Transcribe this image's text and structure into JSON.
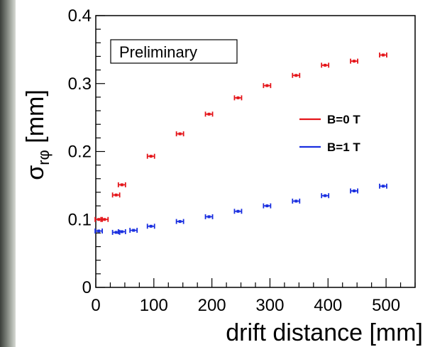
{
  "chart_data": {
    "type": "scatter",
    "xlabel": "drift distance [mm]",
    "ylabel": {
      "base": "σ",
      "subscript": "rφ",
      "unit": " [mm]"
    },
    "xlim": [
      0,
      550
    ],
    "ylim": [
      0,
      0.4
    ],
    "xticks": [
      0,
      100,
      200,
      300,
      400,
      500
    ],
    "yticks": [
      0,
      0.1,
      0.2,
      0.3,
      0.4
    ],
    "ytick_labels": [
      "0",
      "0.1",
      "0.2",
      "0.3",
      "0.4"
    ],
    "annotation": "Preliminary",
    "legend_position": "right",
    "grid": false,
    "series": [
      {
        "name": "B=0 T",
        "color": "#e4161b",
        "points": [
          [
            5,
            0.1
          ],
          [
            15,
            0.1
          ],
          [
            35,
            0.136
          ],
          [
            45,
            0.151
          ],
          [
            95,
            0.193
          ],
          [
            145,
            0.226
          ],
          [
            195,
            0.255
          ],
          [
            245,
            0.279
          ],
          [
            295,
            0.297
          ],
          [
            345,
            0.312
          ],
          [
            395,
            0.327
          ],
          [
            445,
            0.333
          ],
          [
            495,
            0.342
          ]
        ]
      },
      {
        "name": "B=1 T",
        "color": "#1a2fe0",
        "points": [
          [
            5,
            0.083
          ],
          [
            35,
            0.081
          ],
          [
            45,
            0.082
          ],
          [
            65,
            0.084
          ],
          [
            95,
            0.09
          ],
          [
            145,
            0.097
          ],
          [
            195,
            0.104
          ],
          [
            245,
            0.112
          ],
          [
            295,
            0.12
          ],
          [
            345,
            0.127
          ],
          [
            395,
            0.135
          ],
          [
            445,
            0.142
          ],
          [
            495,
            0.149
          ]
        ]
      }
    ]
  }
}
